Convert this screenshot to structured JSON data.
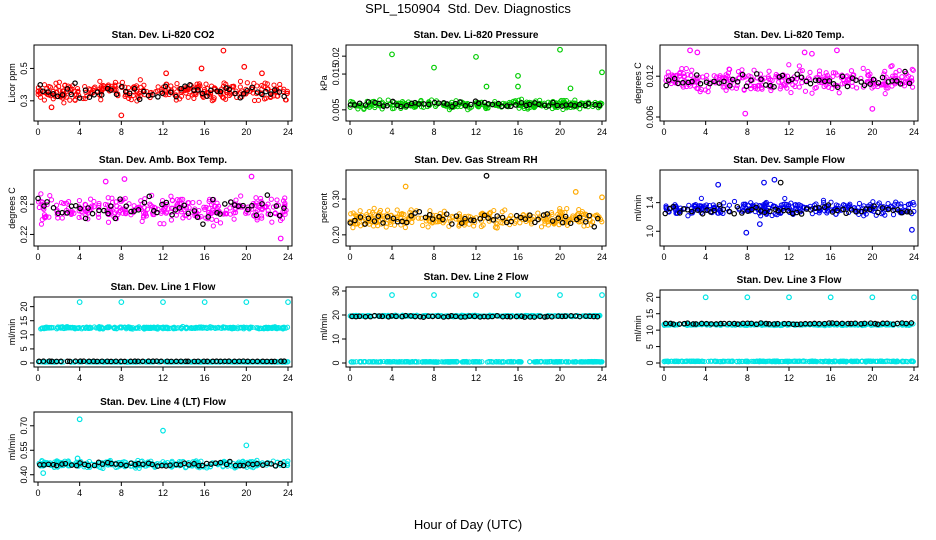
{
  "title": "SPL_150904  Std. Dev. Diagnostics",
  "xlabel": "Hour of Day (UTC)",
  "chart_data": [
    {
      "type": "scatter",
      "title": "Stan. Dev. Li-820 CO2",
      "xlabel": "",
      "ylabel": "Licor ppm",
      "xlim": [
        0,
        24
      ],
      "ylim": [
        0.2,
        0.62
      ],
      "xticks": [
        "0",
        "4",
        "8",
        "12",
        "16",
        "20",
        "24"
      ],
      "yticks": [
        {
          "v": 0.3,
          "label": "0.3"
        },
        {
          "v": 0.5,
          "label": "0.5"
        }
      ],
      "grid": false,
      "series": [
        {
          "color": "#ff0000",
          "base": 0.36,
          "spread": 0.05,
          "density": "dense",
          "outliers": [
            [
              8,
              0.21
            ],
            [
              17.8,
              0.61
            ],
            [
              15.7,
              0.5
            ],
            [
              19.8,
              0.51
            ],
            [
              12.3,
              0.47
            ],
            [
              1.3,
              0.26
            ],
            [
              21.5,
              0.47
            ]
          ]
        },
        {
          "color": "#000000",
          "base": 0.35,
          "spread": 0.04,
          "density": "sparse",
          "outliers": []
        }
      ]
    },
    {
      "type": "scatter",
      "title": "Stan. Dev. Li-820 Pressure",
      "xlabel": "",
      "ylabel": "kPa",
      "xlim": [
        0,
        24
      ],
      "ylim": [
        0.003,
        0.022
      ],
      "xticks": [
        "0",
        "4",
        "8",
        "12",
        "16",
        "20",
        "24"
      ],
      "yticks": [
        {
          "v": 0.005,
          "label": "0.005"
        },
        {
          "v": 0.015,
          "label": "0.015"
        },
        {
          "v": 0.02,
          "label": "0.02"
        }
      ],
      "grid": false,
      "series": [
        {
          "color": "#00cc00",
          "base": 0.0065,
          "spread": 0.0011,
          "density": "dense",
          "outliers": [
            [
              4,
              0.0205
            ],
            [
              8,
              0.0168
            ],
            [
              12,
              0.0198
            ],
            [
              13,
              0.0115
            ],
            [
              16,
              0.0145
            ],
            [
              20,
              0.0218
            ],
            [
              24,
              0.0155
            ],
            [
              21,
              0.011
            ],
            [
              16,
              0.0115
            ]
          ]
        },
        {
          "color": "#000000",
          "base": 0.0065,
          "spread": 0.0008,
          "density": "sparse",
          "outliers": []
        }
      ]
    },
    {
      "type": "scatter",
      "title": "Stan. Dev. Li-820 Temp.",
      "xlabel": "",
      "ylabel": "degrees C",
      "xlim": [
        0,
        24
      ],
      "ylim": [
        0.006,
        0.016
      ],
      "xticks": [
        "0",
        "4",
        "8",
        "12",
        "16",
        "20",
        "24"
      ],
      "yticks": [
        {
          "v": 0.006,
          "label": "0.006"
        },
        {
          "v": 0.012,
          "label": "0.012"
        }
      ],
      "grid": false,
      "series": [
        {
          "color": "#ff00ff",
          "base": 0.0115,
          "spread": 0.0016,
          "density": "dense",
          "outliers": [
            [
              2.5,
              0.0158
            ],
            [
              3.2,
              0.0155
            ],
            [
              7.8,
              0.0065
            ],
            [
              13.5,
              0.0155
            ],
            [
              14.2,
              0.0153
            ],
            [
              16.6,
              0.0158
            ],
            [
              20,
              0.0072
            ]
          ]
        },
        {
          "color": "#000000",
          "base": 0.0113,
          "spread": 0.001,
          "density": "sparse",
          "outliers": []
        }
      ]
    },
    {
      "type": "scatter",
      "title": "Stan. Dev. Amb. Box Temp.",
      "xlabel": "",
      "ylabel": "degrees C",
      "xlim": [
        0,
        24
      ],
      "ylim": [
        0.205,
        0.34
      ],
      "xticks": [
        "0",
        "4",
        "8",
        "12",
        "16",
        "20",
        "24"
      ],
      "yticks": [
        {
          "v": 0.22,
          "label": "0.22"
        },
        {
          "v": 0.28,
          "label": "0.28"
        }
      ],
      "grid": false,
      "series": [
        {
          "color": "#ff00ff",
          "base": 0.27,
          "spread": 0.022,
          "density": "dense",
          "outliers": [
            [
              20.5,
              0.335
            ],
            [
              23.3,
              0.212
            ],
            [
              6.5,
              0.325
            ],
            [
              8.3,
              0.33
            ]
          ]
        },
        {
          "color": "#000000",
          "base": 0.27,
          "spread": 0.02,
          "density": "sparse",
          "outliers": []
        }
      ]
    },
    {
      "type": "scatter",
      "title": "Stan. Dev. Gas Stream RH",
      "xlabel": "",
      "ylabel": "percent",
      "xlim": [
        0,
        24
      ],
      "ylim": [
        0.18,
        0.37
      ],
      "xticks": [
        "0",
        "4",
        "8",
        "12",
        "16",
        "20",
        "24"
      ],
      "yticks": [
        {
          "v": 0.2,
          "label": "0.20"
        },
        {
          "v": 0.3,
          "label": "0.30"
        }
      ],
      "grid": false,
      "series": [
        {
          "color": "#ffaa00",
          "base": 0.245,
          "spread": 0.022,
          "density": "dense",
          "outliers": [
            [
              5.3,
              0.335
            ],
            [
              24,
              0.305
            ],
            [
              14,
              0.22
            ],
            [
              21.5,
              0.32
            ]
          ]
        },
        {
          "color": "#000000",
          "base": 0.245,
          "spread": 0.017,
          "density": "sparse",
          "outliers": [
            [
              13,
              0.365
            ]
          ]
        }
      ]
    },
    {
      "type": "scatter",
      "title": "Stan. Dev. Sample Flow",
      "xlabel": "",
      "ylabel": "ml/min",
      "xlim": [
        0,
        24
      ],
      "ylim": [
        0.85,
        1.8
      ],
      "xticks": [
        "0",
        "4",
        "8",
        "12",
        "16",
        "20",
        "24"
      ],
      "yticks": [
        {
          "v": 1.0,
          "label": "1.0"
        },
        {
          "v": 1.4,
          "label": "1.4"
        }
      ],
      "grid": false,
      "series": [
        {
          "color": "#0000ee",
          "base": 1.32,
          "spread": 0.09,
          "density": "dense",
          "outliers": [
            [
              9.6,
              1.68
            ],
            [
              10.6,
              1.72
            ],
            [
              5.2,
              1.65
            ],
            [
              7.9,
              0.98
            ],
            [
              23.8,
              1.02
            ],
            [
              9.2,
              1.1
            ]
          ]
        },
        {
          "color": "#000000",
          "base": 1.3,
          "spread": 0.06,
          "density": "sparse",
          "outliers": [
            [
              11.2,
              1.68
            ]
          ]
        }
      ]
    },
    {
      "type": "scatter",
      "title": "Stan. Dev. Line 1 Flow",
      "xlabel": "",
      "ylabel": "ml/min",
      "xlim": [
        0,
        24
      ],
      "ylim": [
        0,
        22
      ],
      "xticks": [
        "0",
        "4",
        "8",
        "12",
        "16",
        "20",
        "24"
      ],
      "yticks": [
        {
          "v": 0,
          "label": "0"
        },
        {
          "v": 5,
          "label": "5"
        },
        {
          "v": 10,
          "label": "10"
        },
        {
          "v": 15,
          "label": "15"
        },
        {
          "v": 20,
          "label": "20"
        }
      ],
      "grid": false,
      "series": [
        {
          "color": "#00e5e5",
          "base": 12.5,
          "spread": 0.35,
          "density": "dense",
          "outliers": [
            [
              4,
              21.6
            ],
            [
              8,
              21.6
            ],
            [
              12,
              21.6
            ],
            [
              16,
              21.6
            ],
            [
              20,
              21.6
            ],
            [
              24,
              21.6
            ]
          ]
        },
        {
          "color": "#00e5e5",
          "base": 0.4,
          "spread": 0.1,
          "density": "dense",
          "outliers": []
        },
        {
          "color": "#000000",
          "base": 0.6,
          "spread": 0.05,
          "density": "sparse",
          "outliers": []
        }
      ]
    },
    {
      "type": "scatter",
      "title": "Stan. Dev. Line 2 Flow",
      "xlabel": "",
      "ylabel": "ml/min",
      "xlim": [
        0,
        24
      ],
      "ylim": [
        0,
        30
      ],
      "xticks": [
        "0",
        "4",
        "8",
        "12",
        "16",
        "20",
        "24"
      ],
      "yticks": [
        {
          "v": 0,
          "label": "0"
        },
        {
          "v": 10,
          "label": "10"
        },
        {
          "v": 20,
          "label": "20"
        },
        {
          "v": 30,
          "label": "30"
        }
      ],
      "grid": false,
      "series": [
        {
          "color": "#00e5e5",
          "base": 19.6,
          "spread": 0.25,
          "density": "dense",
          "outliers": [
            [
              4,
              28.3
            ],
            [
              8,
              28.3
            ],
            [
              12,
              28.3
            ],
            [
              16,
              28.3
            ],
            [
              20,
              28.3
            ],
            [
              24,
              28.3
            ]
          ]
        },
        {
          "color": "#00e5e5",
          "base": 0.5,
          "spread": 0.12,
          "density": "dense",
          "outliers": []
        },
        {
          "color": "#000000",
          "base": 19.4,
          "spread": 0.25,
          "density": "sparse",
          "outliers": []
        }
      ]
    },
    {
      "type": "scatter",
      "title": "Stan. Dev. Line 3 Flow",
      "xlabel": "",
      "ylabel": "ml/min",
      "xlim": [
        0,
        24
      ],
      "ylim": [
        0,
        21
      ],
      "xticks": [
        "0",
        "4",
        "8",
        "12",
        "16",
        "20",
        "24"
      ],
      "yticks": [
        {
          "v": 0,
          "label": "0"
        },
        {
          "v": 5,
          "label": "5"
        },
        {
          "v": 10,
          "label": "10"
        },
        {
          "v": 15,
          "label": "15"
        },
        {
          "v": 20,
          "label": "20"
        }
      ],
      "grid": false,
      "series": [
        {
          "color": "#00e5e5",
          "base": 11.7,
          "spread": 0.25,
          "density": "dense",
          "outliers": [
            [
              4,
              20
            ],
            [
              8,
              20
            ],
            [
              12,
              20
            ],
            [
              16,
              20
            ],
            [
              20,
              20
            ],
            [
              24,
              20
            ]
          ]
        },
        {
          "color": "#00e5e5",
          "base": 0.5,
          "spread": 0.1,
          "density": "dense",
          "outliers": []
        },
        {
          "color": "#000000",
          "base": 12.0,
          "spread": 0.2,
          "density": "sparse",
          "outliers": []
        }
      ]
    },
    {
      "type": "scatter",
      "title": "Stan. Dev. Line 4 (LT) Flow",
      "xlabel": "",
      "ylabel": "ml/min",
      "xlim": [
        0,
        24
      ],
      "ylim": [
        0.38,
        0.76
      ],
      "xticks": [
        "0",
        "4",
        "8",
        "12",
        "16",
        "20",
        "24"
      ],
      "yticks": [
        {
          "v": 0.4,
          "label": "0.40"
        },
        {
          "v": 0.55,
          "label": "0.55"
        },
        {
          "v": 0.7,
          "label": "0.70"
        }
      ],
      "grid": false,
      "series": [
        {
          "color": "#00e5e5",
          "base": 0.465,
          "spread": 0.02,
          "density": "dense",
          "outliers": [
            [
              4,
              0.74
            ],
            [
              12,
              0.67
            ],
            [
              20,
              0.58
            ],
            [
              3.8,
              0.5
            ],
            [
              0.5,
              0.41
            ]
          ]
        },
        {
          "color": "#000000",
          "base": 0.465,
          "spread": 0.013,
          "density": "sparse",
          "outliers": []
        }
      ]
    }
  ]
}
